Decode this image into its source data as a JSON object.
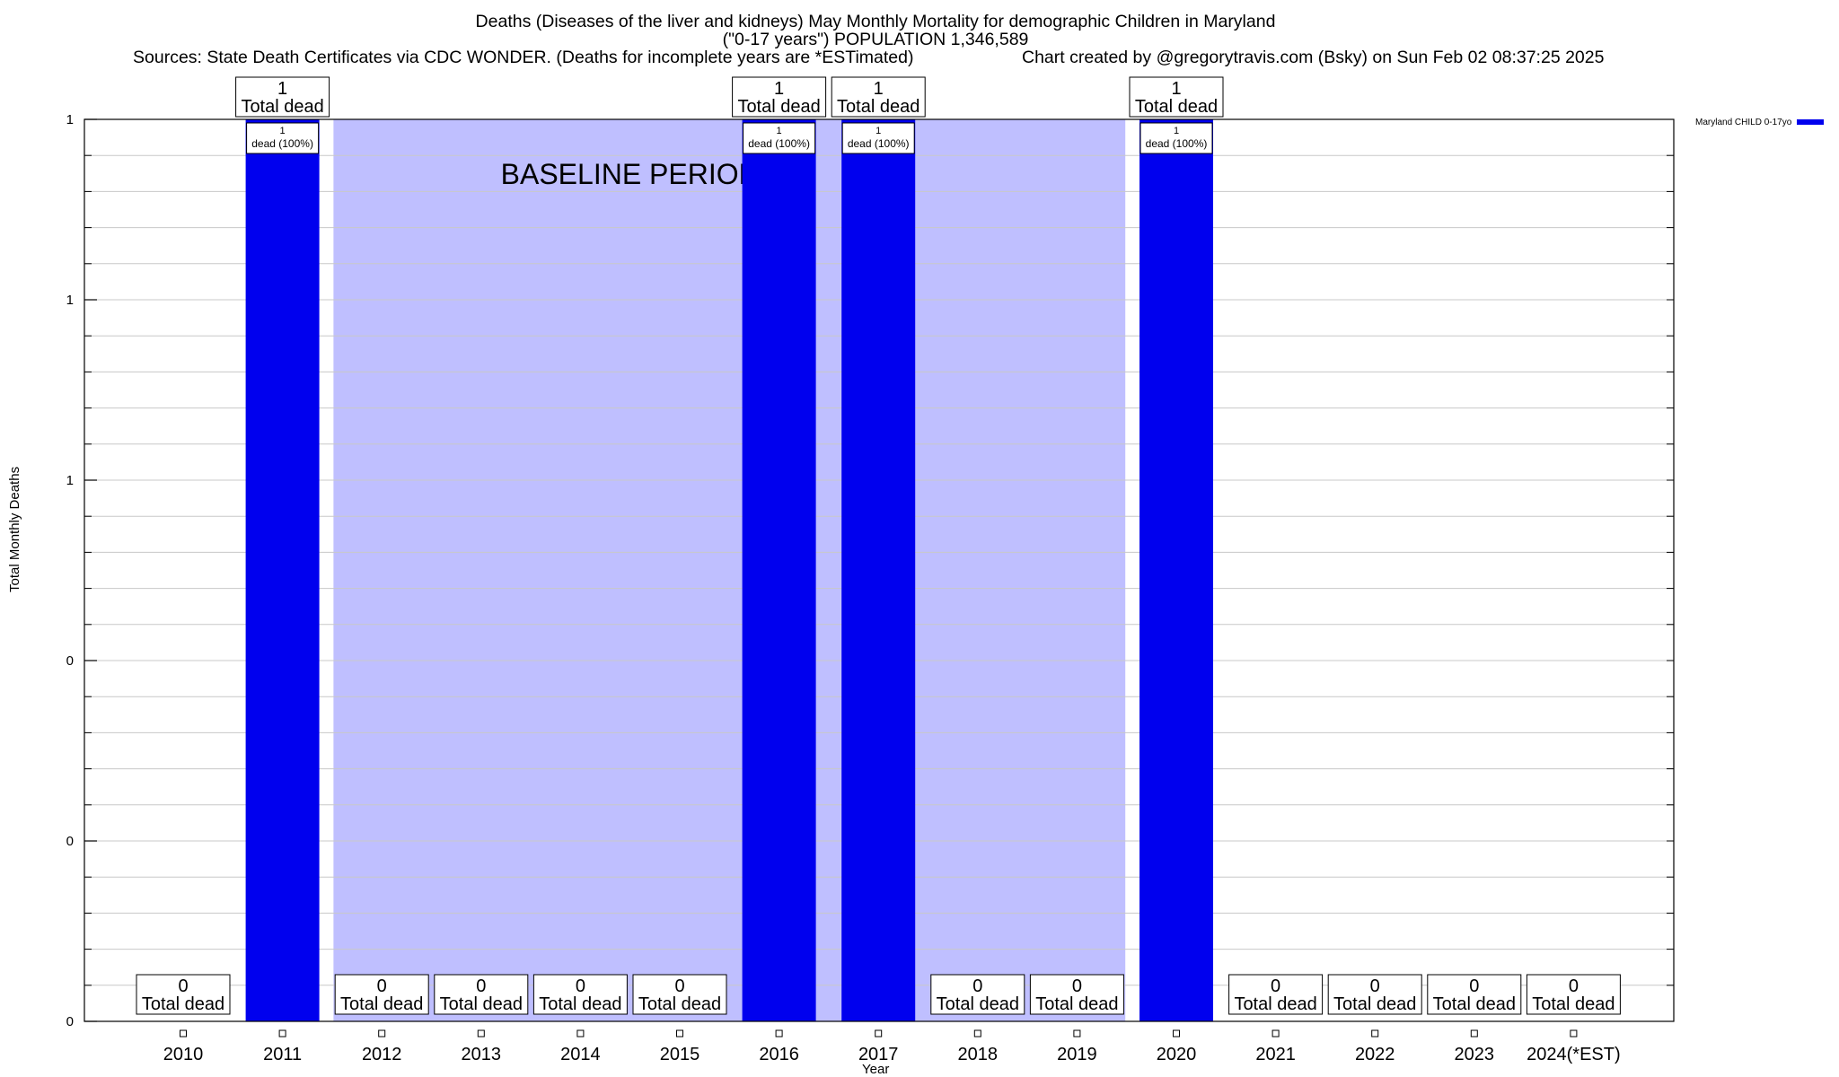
{
  "chart_data": {
    "type": "bar",
    "title_line1": "Deaths (Diseases of the liver and kidneys) May Monthly Mortality for demographic Children in Maryland",
    "title_line2": "(\"0-17 years\") POPULATION 1,346,589",
    "sources": "Sources: State Death Certificates via CDC WONDER. (Deaths for incomplete years are *ESTimated)",
    "credit": "Chart created by @gregorytravis.com (Bsky) on Sun Feb 02 08:37:25 2025",
    "xlabel": "Year",
    "ylabel": "Total Monthly Deaths",
    "categories": [
      "2010",
      "2011",
      "2012",
      "2013",
      "2014",
      "2015",
      "2016",
      "2017",
      "2018",
      "2019",
      "2020",
      "2021",
      "2022",
      "2023",
      "2024(*EST)"
    ],
    "series": [
      {
        "name": "Maryland CHILD 0-17yo",
        "color": "#0000ee",
        "values": [
          0,
          1,
          0,
          0,
          0,
          0,
          1,
          1,
          0,
          0,
          1,
          0,
          0,
          0,
          0
        ]
      }
    ],
    "ylim": [
      0,
      1
    ],
    "yticks": [
      {
        "value": 0,
        "label": "0"
      },
      {
        "value": 0.2,
        "label": "0"
      },
      {
        "value": 0.4,
        "label": "0"
      },
      {
        "value": 0.6,
        "label": "1"
      },
      {
        "value": 0.8,
        "label": "1"
      },
      {
        "value": 1,
        "label": "1"
      }
    ],
    "top_label_suffix": "Total dead",
    "inner_label_suffix": "dead (100%)",
    "baseline": {
      "label": "BASELINE PERIOD",
      "from": "2012",
      "to": "2019",
      "color": "#bfbfff"
    },
    "legend_position": "top-right",
    "grid": true
  }
}
